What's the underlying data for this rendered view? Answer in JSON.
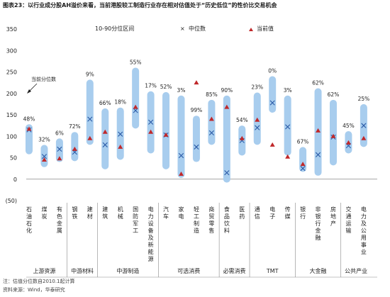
{
  "chart_data": {
    "type": "range_bar_scatter",
    "title": "图表23：以行业成分股AH溢价来看，当前港股较工制造行业存在相对估值处于“历史低位”的性价比交易机会",
    "ylim": [
      -50,
      350
    ],
    "yticks": [
      "(50)",
      "0",
      "50",
      "100",
      "150",
      "200",
      "250",
      "300",
      "350"
    ],
    "ytick_values": [
      -50,
      0,
      50,
      100,
      150,
      200,
      250,
      300,
      350
    ],
    "legend": {
      "range": "10-90分位区间",
      "median": "中位数",
      "current": "当前值"
    },
    "annotation": "当前分位数",
    "categories": [
      "石油石化",
      "煤炭",
      "有色金属",
      "钢铁",
      "建材",
      "建筑",
      "机械",
      "国防军工",
      "电力设备及新能源",
      "汽车",
      "家电",
      "轻工制造",
      "商贸零售",
      "食品饮料",
      "医药",
      "通信",
      "电子",
      "传媒",
      "银行",
      "非银行金融",
      "房地产",
      "交通运输",
      "电力及公用事业"
    ],
    "percentiles": [
      "48%",
      "32%",
      "6%",
      "72%",
      "9%",
      "66%",
      "18%",
      "55%",
      "17%",
      "52%",
      "3%",
      "99%",
      "85%",
      "90%",
      "54%",
      "23%",
      "0%",
      "3%",
      "67%",
      "62%",
      "62%",
      "45%",
      "25%"
    ],
    "p10": [
      58,
      28,
      40,
      42,
      80,
      23,
      45,
      118,
      60,
      23,
      3,
      40,
      80,
      -8,
      55,
      80,
      155,
      55,
      17,
      8,
      32,
      60,
      75
    ],
    "p90": [
      128,
      80,
      95,
      110,
      232,
      165,
      167,
      260,
      205,
      203,
      195,
      148,
      185,
      195,
      125,
      202,
      240,
      195,
      75,
      212,
      185,
      112,
      175
    ],
    "median": [
      115,
      53,
      70,
      63,
      140,
      80,
      105,
      160,
      133,
      103,
      55,
      75,
      108,
      15,
      90,
      120,
      178,
      122,
      25,
      57,
      98,
      78,
      125
    ],
    "current": [
      117,
      45,
      48,
      70,
      95,
      110,
      75,
      168,
      110,
      103,
      12,
      225,
      140,
      168,
      95,
      138,
      80,
      52,
      35,
      113,
      100,
      85,
      95
    ],
    "groups": [
      {
        "label": "上游资源",
        "span": [
          0,
          2
        ]
      },
      {
        "label": "中游材料",
        "span": [
          3,
          4
        ]
      },
      {
        "label": "中游制造",
        "span": [
          5,
          8
        ]
      },
      {
        "label": "可选消费",
        "span": [
          9,
          12
        ]
      },
      {
        "label": "必需消费",
        "span": [
          13,
          14
        ]
      },
      {
        "label": "TMT",
        "span": [
          15,
          17
        ]
      },
      {
        "label": "大金融",
        "span": [
          18,
          20
        ]
      },
      {
        "label": "公共产业",
        "span": [
          21,
          22
        ]
      }
    ],
    "colors": {
      "range": "#a8cdee",
      "median": "#2a5aa6",
      "current": "#c0282a",
      "axis": "#888888"
    }
  },
  "notes": {
    "footnote": "注：估值分位数自2010.1起计算",
    "source": "资料来源：Wind，华泰研究"
  }
}
